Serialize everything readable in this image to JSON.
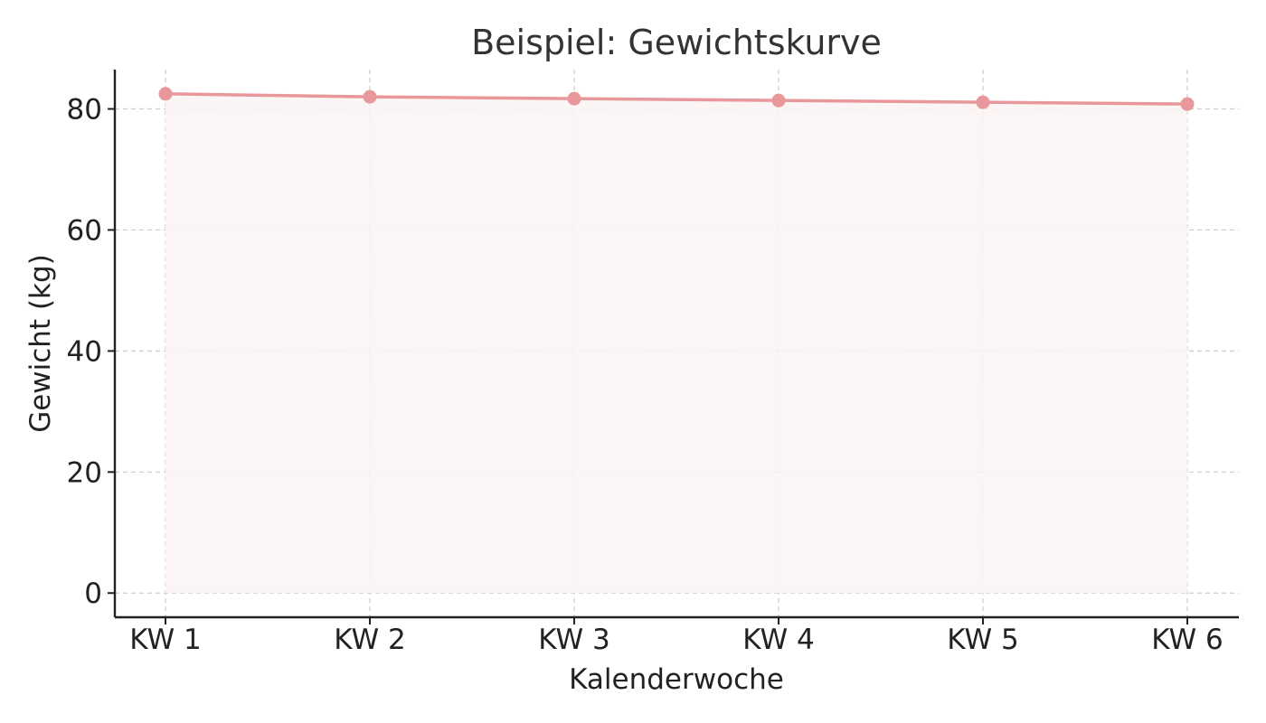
{
  "chart_data": {
    "type": "area",
    "title": "Beispiel: Gewichtskurve",
    "xlabel": "Kalenderwoche",
    "ylabel": "Gewicht (kg)",
    "categories": [
      "KW 1",
      "KW 2",
      "KW 3",
      "KW 4",
      "KW 5",
      "KW 6"
    ],
    "values": [
      82.5,
      82.0,
      81.7,
      81.4,
      81.1,
      80.8
    ],
    "ylim": [
      -4,
      86.5
    ],
    "yticks": [
      0,
      20,
      40,
      60,
      80
    ],
    "grid": true,
    "markers": true,
    "line_color": "#e8979b",
    "fill_color": "#fcf3f3",
    "grid_color": "#cccccc",
    "axis_color": "#222222"
  }
}
